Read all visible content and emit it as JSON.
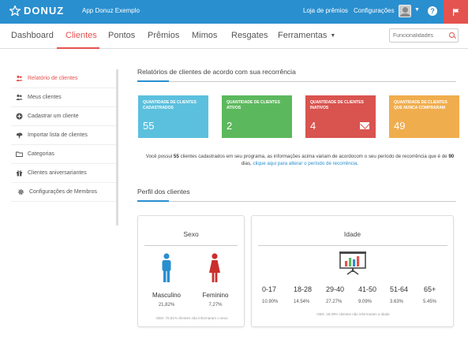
{
  "topbar": {
    "logo_text": "DONUZ",
    "app_name": "App Donuz Exemplo",
    "store_link": "Loja de prêmios",
    "settings_link": "Configurações",
    "help_glyph": "?",
    "colors": {
      "bar": "#2a8fcf",
      "flag": "#e4534f"
    }
  },
  "nav": {
    "items": [
      "Dashboard",
      "Clientes",
      "Pontos",
      "Prêmios",
      "Mimos",
      "Resgates",
      "Ferramentas"
    ],
    "active": "Clientes",
    "search_placeholder": "Funcionalidades"
  },
  "sidebar": {
    "items": [
      {
        "label": "Relatório de clientes",
        "icon": "users-icon",
        "active": true
      },
      {
        "label": "Meus clientes",
        "icon": "users-icon",
        "active": false
      },
      {
        "label": "Cadastrar um cliente",
        "icon": "plus-circle-icon",
        "active": false
      },
      {
        "label": "Importar lista de clientes",
        "icon": "upload-icon",
        "active": false
      },
      {
        "label": "Categorias",
        "icon": "folder-icon",
        "active": false
      },
      {
        "label": "Clientes aniversariantes",
        "icon": "gift-icon",
        "active": false
      },
      {
        "label": "Configurações de Membros",
        "icon": "gear-icon",
        "active": false
      }
    ]
  },
  "report": {
    "title": "Relatórios de clientes de acordo com sua recorrência",
    "cards": [
      {
        "label": "Quantidade de clientes cadastrados",
        "value": "55",
        "color": "#5bc0de"
      },
      {
        "label": "Quantidade de clientes ativos",
        "value": "2",
        "color": "#5cb85c"
      },
      {
        "label": "Quantidade de clientes inativos",
        "value": "4",
        "color": "#d9534f"
      },
      {
        "label": "Quantidade de clientes que nunca compraram",
        "value": "49",
        "color": "#f0ad4e"
      }
    ],
    "info": {
      "p1": "Você possui ",
      "count": "55",
      "p2": " clientes cadastrados em seu programa, as informações acima variam de acordocom o seu período de recorrência que é de ",
      "days": "90",
      "p3": " dias, ",
      "link": "clique aqui para alterar o período de recorrência."
    }
  },
  "profile": {
    "title": "Perfil dos clientes",
    "sex_panel": {
      "title": "Sexo",
      "male_label": "Masculino",
      "male_pct": "21,82%",
      "female_label": "Feminino",
      "female_pct": "7,27%",
      "obs": "OBS: 70,91% clientes não informaram o sexo"
    },
    "age_panel": {
      "title": "Idade",
      "groups": [
        {
          "label": "0-17",
          "pct": "10.90%"
        },
        {
          "label": "18-28",
          "pct": "14.54%"
        },
        {
          "label": "29-40",
          "pct": "27.27%"
        },
        {
          "label": "41-50",
          "pct": "9.09%"
        },
        {
          "label": "51-64",
          "pct": "3.63%"
        },
        {
          "label": "65+",
          "pct": "5.45%"
        }
      ],
      "obs": "OBS: 29.09% clientes não informaram a idade"
    }
  }
}
